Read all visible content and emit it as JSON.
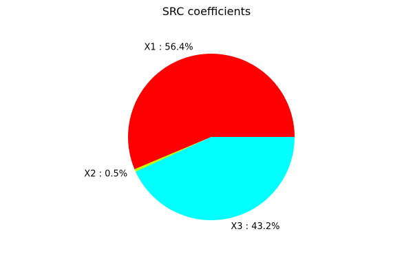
{
  "chart_data": {
    "type": "pie",
    "title": "SRC coefficients",
    "slices": [
      {
        "label": "X1 : 56.4%",
        "name": "X1",
        "value": 56.4,
        "color": "#ff0000"
      },
      {
        "label": "X2 : 0.5%",
        "name": "X2",
        "value": 0.5,
        "color": "#bfff00"
      },
      {
        "label": "X3 : 43.2%",
        "name": "X3",
        "value": 43.2,
        "color": "#00ffff"
      }
    ],
    "start_angle_deg": 0,
    "direction": "counterclockwise"
  }
}
